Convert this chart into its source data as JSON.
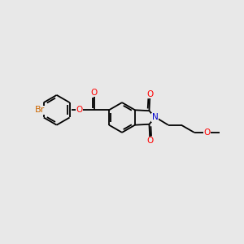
{
  "background_color": "#e8e8e8",
  "bond_color": "#000000",
  "bond_lw": 1.3,
  "atom_colors": {
    "Br": "#cc6600",
    "O": "#ff0000",
    "N": "#0000cc",
    "C": "#000000"
  },
  "font_size": 7.5,
  "xlim": [
    -6.5,
    9.5
  ],
  "ylim": [
    -4.5,
    4.5
  ]
}
